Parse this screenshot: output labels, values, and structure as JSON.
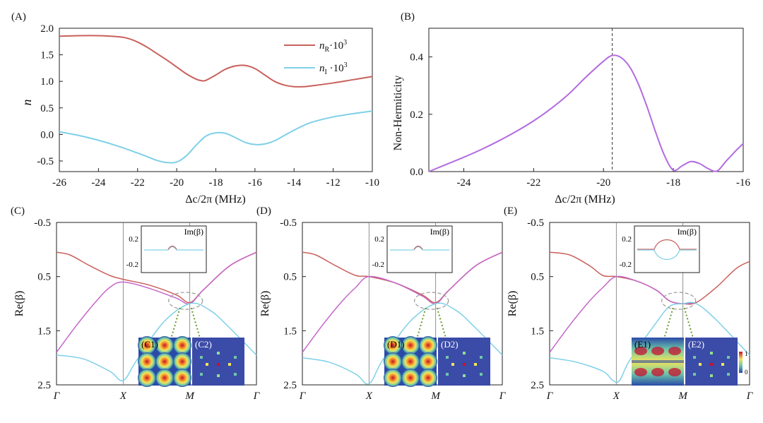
{
  "colors": {
    "red": "#c9605c",
    "blue": "#7fd0e8",
    "purple": "#b36be0",
    "magenta": "#c466c8",
    "dashed_circle": "#9a9a9a",
    "green_arrow": "#6a9a2a",
    "grid_line": "#777777",
    "inset_bg": "#3b4ba8"
  },
  "chart_data": [
    {
      "type": "line",
      "panel_label": "(A)",
      "xlabel": "Δc/2π (MHz)",
      "ylabel": "n",
      "xlim": [
        -26,
        -10
      ],
      "ylim": [
        -0.7,
        2.0
      ],
      "xticks": [
        -26,
        -24,
        -22,
        -20,
        -18,
        -16,
        -14,
        -12,
        -10
      ],
      "yticks": [
        -0.5,
        0.0,
        0.5,
        1.0,
        1.5,
        2.0
      ],
      "ytick_labels": [
        "-0.5",
        "0.0",
        "0.5",
        "1.0",
        "1.5",
        "2.0"
      ],
      "legend_position": "top-right",
      "series": [
        {
          "name": "nR·10³",
          "legend_main": "n",
          "legend_sub": "R",
          "legend_rest": "·10",
          "legend_sup": "3",
          "color_key": "red",
          "x": [
            -26,
            -25,
            -24,
            -23,
            -22.5,
            -22,
            -21.5,
            -21,
            -20.5,
            -20,
            -19.5,
            -19,
            -18.7,
            -18.5,
            -18,
            -17.5,
            -17,
            -16.5,
            -16,
            -15.5,
            -15,
            -14.5,
            -14,
            -13.5,
            -13,
            -12,
            -11,
            -10
          ],
          "y": [
            1.85,
            1.86,
            1.86,
            1.84,
            1.81,
            1.74,
            1.64,
            1.52,
            1.4,
            1.27,
            1.14,
            1.04,
            1.01,
            1.02,
            1.12,
            1.23,
            1.29,
            1.3,
            1.24,
            1.12,
            1.0,
            0.93,
            0.9,
            0.9,
            0.92,
            0.97,
            1.03,
            1.09
          ]
        },
        {
          "name": "nI·10³",
          "legend_main": "n",
          "legend_sub": "I",
          "legend_rest": " ·10",
          "legend_sup": "3",
          "color_key": "blue",
          "x": [
            -26,
            -25,
            -24,
            -23,
            -22,
            -21.5,
            -21,
            -20.5,
            -20,
            -19.5,
            -19,
            -18.5,
            -18,
            -17.5,
            -17,
            -16.5,
            -16,
            -15.5,
            -15,
            -14.5,
            -14,
            -13.5,
            -13,
            -12,
            -11,
            -10
          ],
          "y": [
            0.05,
            -0.02,
            -0.11,
            -0.22,
            -0.35,
            -0.42,
            -0.49,
            -0.53,
            -0.52,
            -0.4,
            -0.2,
            -0.03,
            0.03,
            0.02,
            -0.06,
            -0.15,
            -0.19,
            -0.18,
            -0.12,
            -0.02,
            0.08,
            0.17,
            0.24,
            0.33,
            0.39,
            0.44
          ]
        }
      ]
    },
    {
      "type": "line",
      "panel_label": "(B)",
      "xlabel": "Δc/2π (MHz)",
      "ylabel": "Non-Hermiticity",
      "xlim": [
        -25,
        -16
      ],
      "ylim": [
        0.0,
        0.5
      ],
      "xticks": [
        -24,
        -22,
        -20,
        -18,
        -16
      ],
      "yticks": [
        0.0,
        0.2,
        0.4
      ],
      "ytick_labels": [
        "0.0",
        "0.2",
        "0.4"
      ],
      "vertical_marker_x": -19.75,
      "series": [
        {
          "color_key": "purple",
          "x": [
            -25,
            -24.5,
            -24,
            -23.5,
            -23,
            -22.5,
            -22,
            -21.5,
            -21,
            -20.5,
            -20,
            -19.75,
            -19.5,
            -19.25,
            -19,
            -18.75,
            -18.5,
            -18.25,
            -18,
            -17.75,
            -17.5,
            -17.25,
            -17,
            -16.75,
            -16.5,
            -16.25,
            -16
          ],
          "y": [
            0.0,
            0.025,
            0.05,
            0.077,
            0.107,
            0.14,
            0.177,
            0.22,
            0.27,
            0.33,
            0.385,
            0.405,
            0.398,
            0.365,
            0.305,
            0.225,
            0.135,
            0.055,
            0.005,
            0.02,
            0.035,
            0.028,
            0.01,
            0.002,
            0.035,
            0.068,
            0.098
          ]
        }
      ]
    },
    {
      "type": "line",
      "panel_label": "(C)",
      "ylabel": "Re(β)",
      "ylim": [
        2.5,
        -0.5
      ],
      "yticks": [
        -0.5,
        0.5,
        1.5,
        2.5
      ],
      "ytick_labels": [
        "-0.5",
        "0.5",
        "1.5",
        "2.5"
      ],
      "xtick_labels": [
        "Γ",
        "X",
        "M",
        "Γ"
      ],
      "inset_title": "Im(β)",
      "inset_yticks": [
        "0.2",
        "-0.2"
      ],
      "subpanel_labels": [
        "(C1)",
        "(C2)"
      ],
      "series": [
        {
          "color_key": "red",
          "x": [
            0,
            0.2,
            0.5,
            0.8,
            1.0,
            1.4,
            1.8,
            2.0,
            2.2,
            2.6,
            3.0
          ],
          "y": [
            0.05,
            0.1,
            0.3,
            0.48,
            0.55,
            0.66,
            0.84,
            0.98,
            0.75,
            0.3,
            0.05
          ]
        },
        {
          "color_key": "magenta",
          "x": [
            0,
            0.3,
            0.6,
            0.8,
            1.0,
            1.4,
            1.8,
            2.0,
            2.2,
            2.6,
            3.0
          ],
          "y": [
            1.9,
            1.4,
            0.95,
            0.7,
            0.6,
            0.72,
            0.9,
            1.0,
            0.75,
            0.3,
            0.05
          ]
        },
        {
          "color_key": "blue",
          "x": [
            0,
            0.4,
            0.8,
            1.0,
            1.2,
            1.6,
            2.0,
            2.3,
            2.6,
            3.0
          ],
          "y": [
            1.95,
            2.02,
            2.25,
            2.42,
            2.05,
            1.35,
            1.0,
            1.12,
            1.45,
            1.95
          ]
        }
      ]
    },
    {
      "type": "line",
      "panel_label": "(D)",
      "ylabel": "Re(β)",
      "ylim": [
        2.5,
        -0.5
      ],
      "yticks": [
        -0.5,
        0.5,
        1.5,
        2.5
      ],
      "ytick_labels": [
        "-0.5",
        "0.5",
        "1.5",
        "2.5"
      ],
      "xtick_labels": [
        "Γ",
        "X",
        "M",
        "Γ"
      ],
      "inset_title": "Im(β)",
      "inset_yticks": [
        "0.2",
        "-0.2"
      ],
      "subpanel_labels": [
        "(D1)",
        "(D2)"
      ],
      "series": [
        {
          "color_key": "red",
          "x": [
            0,
            0.2,
            0.5,
            0.8,
            1.0,
            1.4,
            1.8,
            2.0,
            2.2,
            2.6,
            3.0
          ],
          "y": [
            0.05,
            0.1,
            0.3,
            0.48,
            0.5,
            0.62,
            0.84,
            0.98,
            0.75,
            0.3,
            0.05
          ]
        },
        {
          "color_key": "magenta",
          "x": [
            0,
            0.3,
            0.6,
            0.8,
            1.0,
            1.4,
            1.8,
            2.0,
            2.2,
            2.6,
            3.0
          ],
          "y": [
            1.9,
            1.4,
            0.95,
            0.7,
            0.5,
            0.62,
            0.86,
            1.0,
            0.75,
            0.3,
            0.05
          ]
        },
        {
          "color_key": "blue",
          "x": [
            0,
            0.4,
            0.8,
            1.0,
            1.2,
            1.6,
            2.0,
            2.3,
            2.6,
            3.0
          ],
          "y": [
            2.0,
            2.08,
            2.3,
            2.48,
            2.05,
            1.35,
            1.0,
            1.12,
            1.45,
            1.95
          ]
        }
      ]
    },
    {
      "type": "line",
      "panel_label": "(E)",
      "ylabel": "Re(β)",
      "ylim": [
        2.5,
        -0.5
      ],
      "yticks": [
        -0.5,
        0.5,
        1.5,
        2.5
      ],
      "ytick_labels": [
        "-0.5",
        "0.5",
        "1.5",
        "2.5"
      ],
      "xtick_labels": [
        "Γ",
        "X",
        "M",
        "Γ"
      ],
      "inset_title": "Im(β)",
      "inset_yticks": [
        "0.2",
        "-0.2"
      ],
      "subpanel_labels": [
        "(E1)",
        "(E2)"
      ],
      "colorbar_ticks": [
        "1",
        "0"
      ],
      "series": [
        {
          "color_key": "red",
          "x": [
            0,
            0.3,
            0.6,
            0.8,
            1.0,
            1.3,
            1.6,
            1.8,
            2.0,
            2.2,
            2.5,
            2.8,
            3.0
          ],
          "y": [
            0.05,
            0.1,
            0.3,
            0.48,
            0.5,
            0.58,
            0.75,
            0.95,
            1.0,
            0.98,
            0.7,
            0.35,
            0.22
          ]
        },
        {
          "color_key": "magenta",
          "x": [
            0,
            0.3,
            0.6,
            0.8,
            1.0,
            1.3,
            1.6,
            1.8,
            2.0,
            2.2
          ],
          "y": [
            1.9,
            1.4,
            0.95,
            0.7,
            0.5,
            0.58,
            0.75,
            0.95,
            1.0,
            0.98
          ]
        },
        {
          "color_key": "blue",
          "x": [
            0,
            0.4,
            0.8,
            0.95,
            1.05,
            1.2,
            1.6,
            1.8,
            2.0,
            2.2,
            2.5,
            3.0
          ],
          "y": [
            2.0,
            2.08,
            2.25,
            2.42,
            2.42,
            2.05,
            1.35,
            1.05,
            1.0,
            1.0,
            1.3,
            1.95
          ]
        }
      ]
    }
  ]
}
